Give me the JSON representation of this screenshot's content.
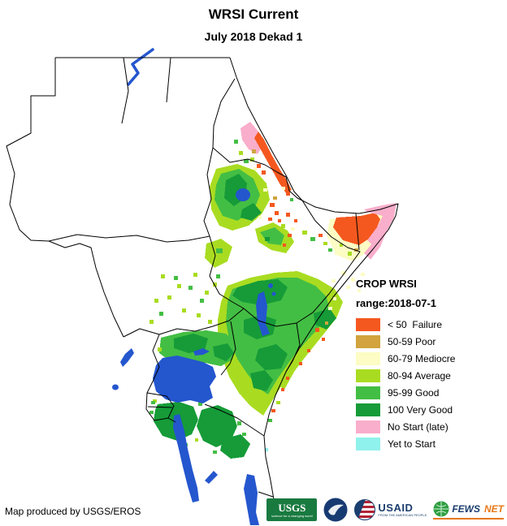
{
  "title": "WRSI Current",
  "subtitle": "July 2018 Dekad 1",
  "legend": {
    "title": "CROP WRSI",
    "range_label": "range:2018-07-1",
    "items": [
      {
        "label": "< 50  Failure",
        "color": "#F4581F"
      },
      {
        "label": "50-59 Poor",
        "color": "#D2A33E"
      },
      {
        "label": "60-79 Mediocre",
        "color": "#FCFCC4"
      },
      {
        "label": "80-94 Average",
        "color": "#A9DC21"
      },
      {
        "label": "95-99 Good",
        "color": "#43BE44"
      },
      {
        "label": "100 Very Good",
        "color": "#169B38"
      },
      {
        "label": "No Start (late)",
        "color": "#F9AECB"
      },
      {
        "label": "Yet to Start",
        "color": "#90F2EC"
      }
    ]
  },
  "map": {
    "water_color": "#2456CE",
    "border_color": "#000000",
    "background_color": "#FFFFFF"
  },
  "footer": {
    "credit": "Map produced by USGS/EROS"
  },
  "logos": {
    "usgs": {
      "text": "USGS",
      "tagline": "science for a changing world",
      "color": "#197A3F"
    },
    "noaa": {
      "icon": "noaa-emblem",
      "color": "#173A72"
    },
    "usaid": {
      "text": "USAID",
      "tagline": "FROM THE AMERICAN PEOPLE",
      "color": "#1A3E6F"
    },
    "fewsnet": {
      "text_primary": "FEWS",
      "text_secondary": "NET",
      "color": "#E87817"
    }
  }
}
